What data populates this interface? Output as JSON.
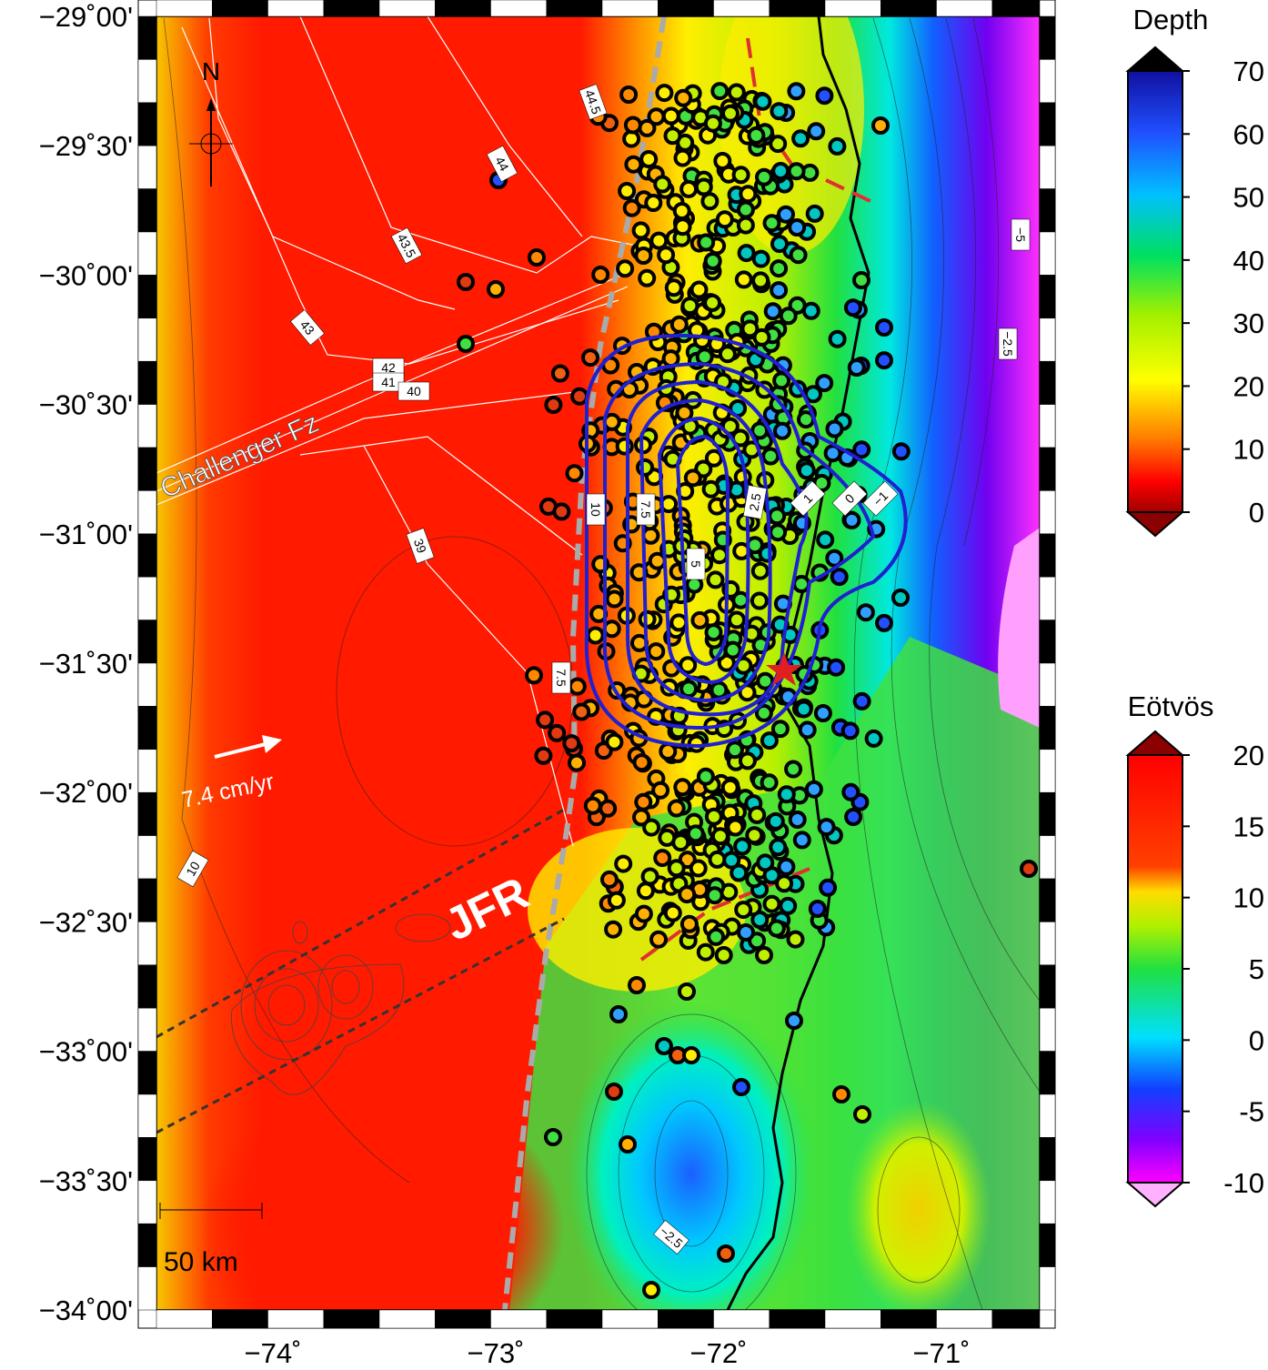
{
  "map": {
    "lat_labels": [
      "−29˚00'",
      "−29˚30'",
      "−30˚00'",
      "−30˚30'",
      "−31˚00'",
      "−31˚30'",
      "−32˚00'",
      "−32˚30'",
      "−33˚00'",
      "−33˚30'",
      "−34˚00'"
    ],
    "lon_labels": [
      "−74˚",
      "−73˚",
      "−72˚",
      "−71˚"
    ],
    "annotations": {
      "north": "N",
      "fracture_zone": "Challenger Fz",
      "velocity": "7.4 cm/yr",
      "ridge": "JFR",
      "scale_bar": "50 km"
    },
    "contour_labels": [
      "44.5",
      "44",
      "43.5",
      "43",
      "42",
      "41",
      "40",
      "39",
      "10",
      "7.5",
      "−5",
      "−2.5",
      "1",
      "0",
      "−1",
      "2.5",
      "5",
      "7.5",
      "10",
      "−2.5"
    ]
  },
  "colorbars": [
    {
      "title": "Depth",
      "ticks": [
        0,
        10,
        20,
        30,
        40,
        50,
        60,
        70
      ]
    },
    {
      "title": "Eötvös",
      "ticks": [
        -10,
        -5,
        0,
        5,
        10,
        15,
        20
      ]
    }
  ]
}
